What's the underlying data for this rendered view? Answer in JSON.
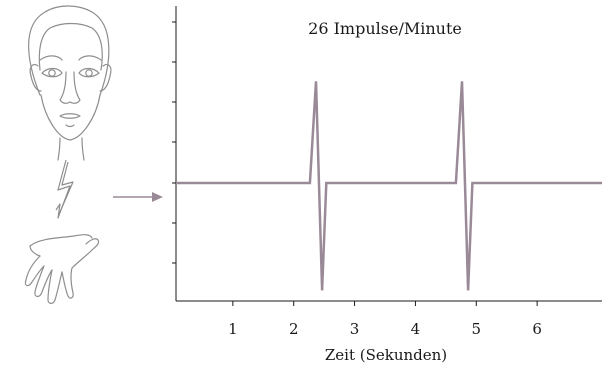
{
  "chart_data": {
    "type": "line",
    "title": "26 Impulse/Minute",
    "xlabel": "Zeit (Sekunden)",
    "ylabel": "",
    "xlim": [
      0,
      7
    ],
    "ylim": [
      -1.05,
      1.05
    ],
    "x_ticks": [
      1,
      2,
      3,
      4,
      5,
      6
    ],
    "grid": false,
    "legend": "none",
    "series": [
      {
        "name": "",
        "color": "#9a8a98",
        "points": [
          [
            0,
            0
          ],
          [
            2.2,
            0
          ],
          [
            2.3,
            0.9
          ],
          [
            2.4,
            -0.95
          ],
          [
            2.47,
            0
          ],
          [
            4.6,
            0
          ],
          [
            4.7,
            0.9
          ],
          [
            4.8,
            -0.95
          ],
          [
            4.87,
            0
          ],
          [
            7,
            0
          ]
        ]
      }
    ]
  },
  "illustration": {
    "face": "face-icon",
    "lightning": "lightning-icon",
    "hand": "hand-icon",
    "arrow": "arrow-right-icon",
    "line_color": "#9a9a9a"
  }
}
